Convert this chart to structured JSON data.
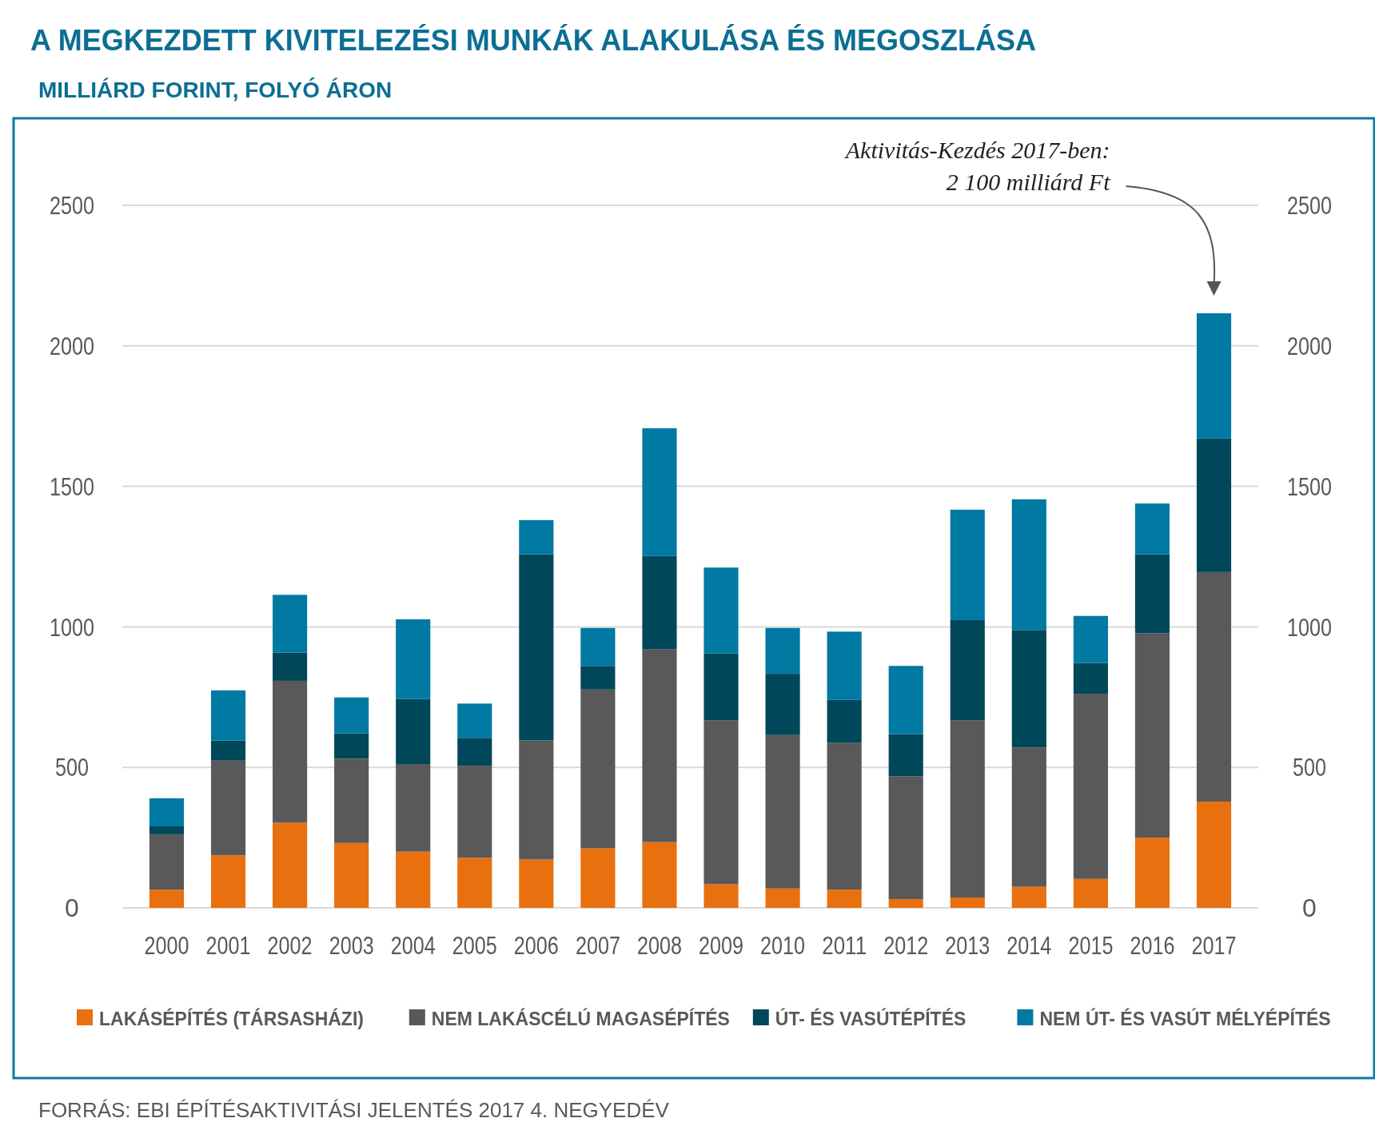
{
  "chart_data": {
    "type": "bar",
    "title": "A MEGKEZDETT KIVITELEZÉSI MUNKÁK ALAKULÁSA ÉS MEGOSZLÁSA",
    "subtitle": "MILLIÁRD FORINT, FOLYÓ ÁRON",
    "categories": [
      "2000",
      "2001",
      "2002",
      "2003",
      "2004",
      "2005",
      "2006",
      "2007",
      "2008",
      "2009",
      "2010",
      "2011",
      "2012",
      "2013",
      "2014",
      "2015",
      "2016",
      "2017"
    ],
    "stacked": true,
    "series": [
      {
        "name": "LAKÁSÉPÍTÉS (TÁRSASHÁZI)",
        "color": "#e8700e",
        "values": [
          65,
          187,
          303,
          231,
          200,
          178,
          172,
          212,
          234,
          84,
          69,
          65,
          31,
          37,
          75,
          103,
          250,
          378
        ]
      },
      {
        "name": "NEM LAKÁSCÉLÚ MAGASÉPÍTÉS",
        "color": "#595959",
        "values": [
          197,
          337,
          505,
          300,
          312,
          328,
          424,
          565,
          687,
          584,
          546,
          522,
          437,
          631,
          496,
          659,
          727,
          817
        ]
      },
      {
        "name": "ÚT- ÉS VASÚTÉPÍTÉS",
        "color": "#00475a",
        "values": [
          28,
          72,
          100,
          90,
          231,
          99,
          662,
          84,
          331,
          237,
          218,
          153,
          150,
          356,
          418,
          109,
          281,
          475
        ]
      },
      {
        "name": "NEM ÚT- ÉS VASÚT MÉLYÉPÍTÉS",
        "color": "#0079a3",
        "values": [
          100,
          178,
          206,
          128,
          284,
          122,
          122,
          135,
          455,
          306,
          163,
          243,
          243,
          393,
          465,
          168,
          181,
          446
        ]
      }
    ],
    "ylim": [
      0,
      2500
    ],
    "yticks": [
      0,
      500,
      1000,
      1500,
      2000,
      2500
    ],
    "y2lim": [
      0,
      2500
    ],
    "y2ticks": [
      0,
      500,
      1000,
      1500,
      2000,
      2500
    ],
    "grid": "y",
    "legend": "bottom",
    "annotations": [
      "Aktivitás-Kezdés 2017-ben:\n2 100 milliárd Ft",
      "FORRÁS: EBI ÉPÍTÉSAKTIVITÁSI JELENTÉS 2017 4. NEGYEDÉV"
    ]
  }
}
